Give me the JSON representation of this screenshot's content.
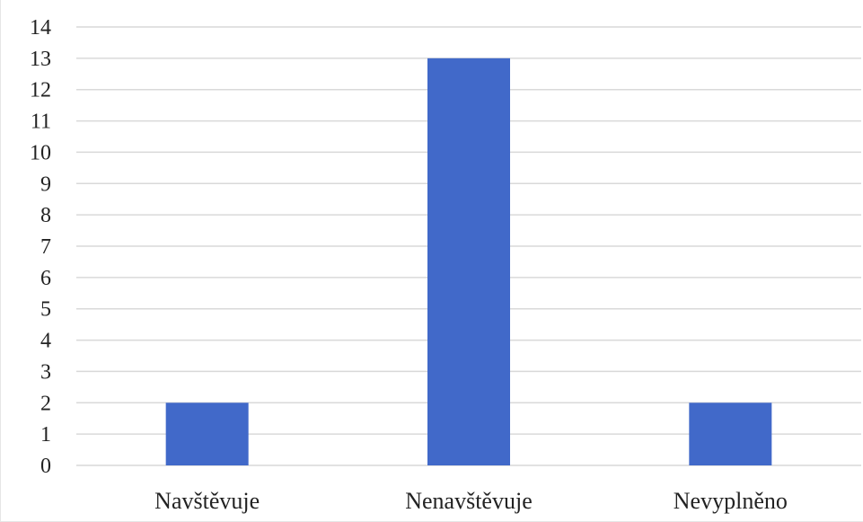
{
  "chart_data": {
    "type": "bar",
    "categories": [
      "Navštěvuje",
      "Nenavštěvuje",
      "Nevyplněno"
    ],
    "values": [
      2,
      13,
      2
    ],
    "title": "",
    "xlabel": "",
    "ylabel": "",
    "ylim": [
      0,
      14
    ],
    "yticks": [
      "0",
      "1",
      "2",
      "3",
      "4",
      "5",
      "6",
      "7",
      "8",
      "9",
      "10",
      "11",
      "12",
      "13",
      "14"
    ],
    "grid": true,
    "legend": "none",
    "colors": {
      "bar": "#4169C9",
      "grid": "#d9d9d9",
      "text": "#222222"
    }
  }
}
